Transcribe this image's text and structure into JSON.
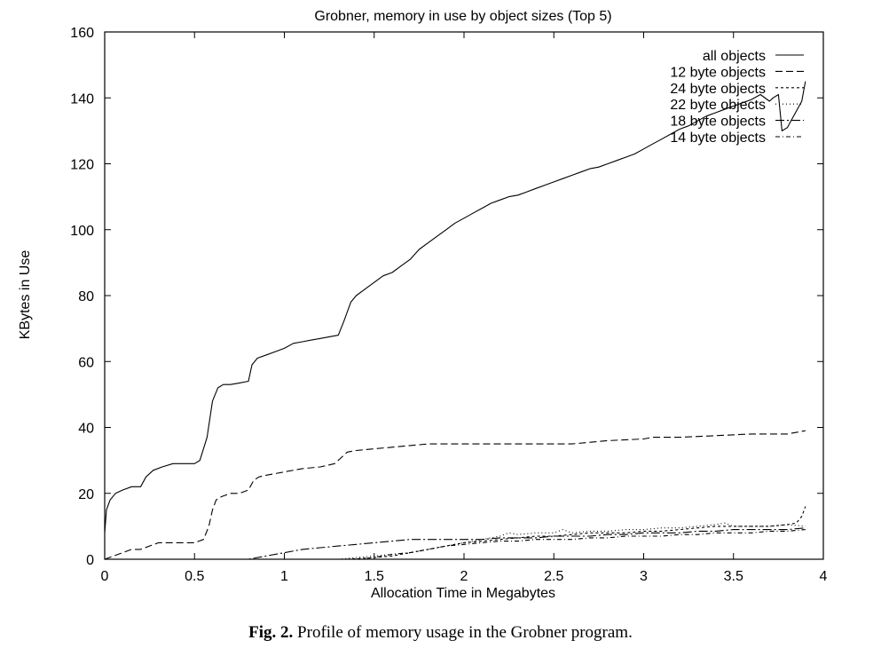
{
  "chart_data": {
    "type": "line",
    "title": "Grobner, memory in use by object sizes (Top 5)",
    "xlabel": "Allocation Time in Megabytes",
    "ylabel": "KBytes in Use",
    "xlim": [
      0,
      4
    ],
    "ylim": [
      0,
      160
    ],
    "xticks": [
      0,
      0.5,
      1,
      1.5,
      2,
      2.5,
      3,
      3.5,
      4
    ],
    "xtick_labels": [
      "0",
      "0.5",
      "1",
      "1.5",
      "2",
      "2.5",
      "3",
      "3.5",
      "4"
    ],
    "yticks": [
      0,
      20,
      40,
      60,
      80,
      100,
      120,
      140,
      160
    ],
    "ytick_labels": [
      "0",
      "20",
      "40",
      "60",
      "80",
      "100",
      "120",
      "140",
      "160"
    ],
    "grid": false,
    "legend_position": "top-right",
    "series": [
      {
        "name": "all objects",
        "dash": "solid",
        "x": [
          0,
          0.01,
          0.03,
          0.06,
          0.1,
          0.15,
          0.2,
          0.23,
          0.27,
          0.32,
          0.38,
          0.44,
          0.5,
          0.53,
          0.57,
          0.6,
          0.63,
          0.66,
          0.7,
          0.75,
          0.8,
          0.82,
          0.85,
          0.9,
          0.95,
          1.0,
          1.05,
          1.1,
          1.15,
          1.2,
          1.25,
          1.3,
          1.33,
          1.37,
          1.4,
          1.45,
          1.5,
          1.55,
          1.6,
          1.65,
          1.7,
          1.75,
          1.8,
          1.85,
          1.9,
          1.95,
          2.0,
          2.05,
          2.1,
          2.15,
          2.2,
          2.25,
          2.3,
          2.35,
          2.4,
          2.45,
          2.5,
          2.55,
          2.6,
          2.65,
          2.7,
          2.75,
          2.8,
          2.85,
          2.9,
          2.95,
          3.0,
          3.05,
          3.1,
          3.15,
          3.2,
          3.25,
          3.3,
          3.35,
          3.4,
          3.45,
          3.5,
          3.55,
          3.6,
          3.65,
          3.7,
          3.72,
          3.75,
          3.77,
          3.8,
          3.82,
          3.85,
          3.88,
          3.9
        ],
        "y": [
          8,
          15,
          18,
          20,
          21,
          22,
          22,
          25,
          27,
          28,
          29,
          29,
          29,
          30,
          37,
          48,
          52,
          53,
          53,
          53.5,
          54,
          59,
          61,
          62,
          63,
          64,
          65.5,
          66,
          66.5,
          67,
          67.5,
          68,
          72,
          78,
          80,
          82,
          84,
          86,
          87,
          89,
          91,
          94,
          96,
          98,
          100,
          102,
          103.5,
          105,
          106.5,
          108,
          109,
          110,
          110.5,
          111.5,
          112.5,
          113.5,
          114.5,
          115.5,
          116.5,
          117.5,
          118.5,
          119,
          120,
          121,
          122,
          123,
          124.5,
          126,
          127.5,
          129,
          130.5,
          131.5,
          133,
          134.5,
          135.5,
          136.5,
          137.5,
          138.5,
          139.5,
          141,
          139,
          140,
          141,
          130,
          131,
          133,
          136,
          139,
          145
        ]
      },
      {
        "name": "12 byte objects",
        "dash": "8,4",
        "x": [
          0,
          0.05,
          0.1,
          0.15,
          0.2,
          0.25,
          0.3,
          0.35,
          0.4,
          0.45,
          0.5,
          0.55,
          0.58,
          0.6,
          0.62,
          0.65,
          0.7,
          0.75,
          0.8,
          0.83,
          0.86,
          0.9,
          0.95,
          1.0,
          1.1,
          1.2,
          1.28,
          1.32,
          1.35,
          1.4,
          1.5,
          1.6,
          1.7,
          1.8,
          2.0,
          2.2,
          2.4,
          2.6,
          2.8,
          3.0,
          3.05,
          3.2,
          3.4,
          3.6,
          3.8,
          3.9
        ],
        "y": [
          0,
          1,
          2,
          3,
          3,
          4,
          5,
          5,
          5,
          5,
          5,
          6,
          10,
          15,
          18,
          19,
          20,
          20,
          21,
          24,
          25,
          25.5,
          26,
          26.5,
          27.5,
          28,
          29,
          31,
          32.5,
          33,
          33.5,
          34,
          34.5,
          35,
          35,
          35,
          35,
          35,
          36,
          36.5,
          37,
          37,
          37.5,
          38,
          38,
          39
        ]
      },
      {
        "name": "24 byte objects",
        "dash": "3,3",
        "x": [
          1.35,
          1.5,
          1.6,
          1.7,
          1.8,
          1.9,
          2.0,
          2.1,
          2.2,
          2.3,
          2.4,
          2.5,
          2.6,
          2.7,
          2.8,
          2.9,
          3.0,
          3.1,
          3.2,
          3.3,
          3.4,
          3.5,
          3.6,
          3.7,
          3.8,
          3.85,
          3.88,
          3.9
        ],
        "y": [
          0,
          0.5,
          1,
          2,
          3,
          4,
          5,
          5.5,
          6,
          6.5,
          7,
          7,
          7.5,
          8,
          8,
          8,
          8.5,
          8.5,
          9,
          9.5,
          10,
          10,
          10,
          10,
          10.5,
          11,
          13,
          16
        ]
      },
      {
        "name": "22 byte objects",
        "dash": "1,3",
        "x": [
          1.3,
          1.5,
          1.7,
          1.8,
          1.9,
          2.0,
          2.1,
          2.2,
          2.25,
          2.3,
          2.4,
          2.5,
          2.55,
          2.6,
          2.7,
          2.8,
          2.9,
          3.0,
          3.1,
          3.2,
          3.3,
          3.4,
          3.45,
          3.5,
          3.6,
          3.7,
          3.8,
          3.9
        ],
        "y": [
          0,
          1,
          2,
          3,
          4,
          5,
          6,
          7,
          8,
          7.5,
          8,
          8,
          9,
          8,
          8.5,
          8.5,
          9,
          9,
          9.5,
          9.5,
          10,
          10.5,
          11,
          10,
          10,
          10,
          10.5,
          10
        ]
      },
      {
        "name": "18 byte objects",
        "dash": "10,3,2,3",
        "x": [
          0.65,
          0.8,
          0.9,
          1.0,
          1.1,
          1.2,
          1.3,
          1.4,
          1.5,
          1.6,
          1.7,
          1.8,
          1.9,
          2.0,
          2.1,
          2.2,
          2.3,
          2.4,
          2.5,
          2.6,
          2.7,
          2.8,
          2.9,
          3.0,
          3.1,
          3.2,
          3.3,
          3.4,
          3.5,
          3.6,
          3.7,
          3.8,
          3.9
        ],
        "y": [
          0,
          0,
          1,
          2,
          3,
          3.5,
          4,
          4.5,
          5,
          5.5,
          6,
          6,
          6,
          6,
          6,
          6.5,
          6.5,
          6.5,
          7,
          7,
          7,
          7.5,
          7.5,
          8,
          8,
          8,
          8.5,
          8.5,
          9,
          9,
          9,
          9,
          9.5
        ]
      },
      {
        "name": "14 byte objects",
        "dash": "5,3,1,3",
        "x": [
          1.4,
          1.5,
          1.6,
          1.7,
          1.8,
          1.9,
          2.0,
          2.1,
          2.2,
          2.3,
          2.4,
          2.5,
          2.6,
          2.7,
          2.8,
          2.9,
          3.0,
          3.1,
          3.2,
          3.3,
          3.4,
          3.5,
          3.6,
          3.7,
          3.8,
          3.9
        ],
        "y": [
          0,
          0.5,
          1.5,
          2,
          3,
          4,
          4.5,
          5,
          5.5,
          5.5,
          6,
          6,
          6,
          6.5,
          6.5,
          7,
          7,
          7,
          7.5,
          7.5,
          8,
          8,
          8,
          8.5,
          8.5,
          9
        ]
      }
    ]
  },
  "caption": {
    "label": "Fig. 2.",
    "text": " Profile of memory usage in the Grobner program."
  }
}
